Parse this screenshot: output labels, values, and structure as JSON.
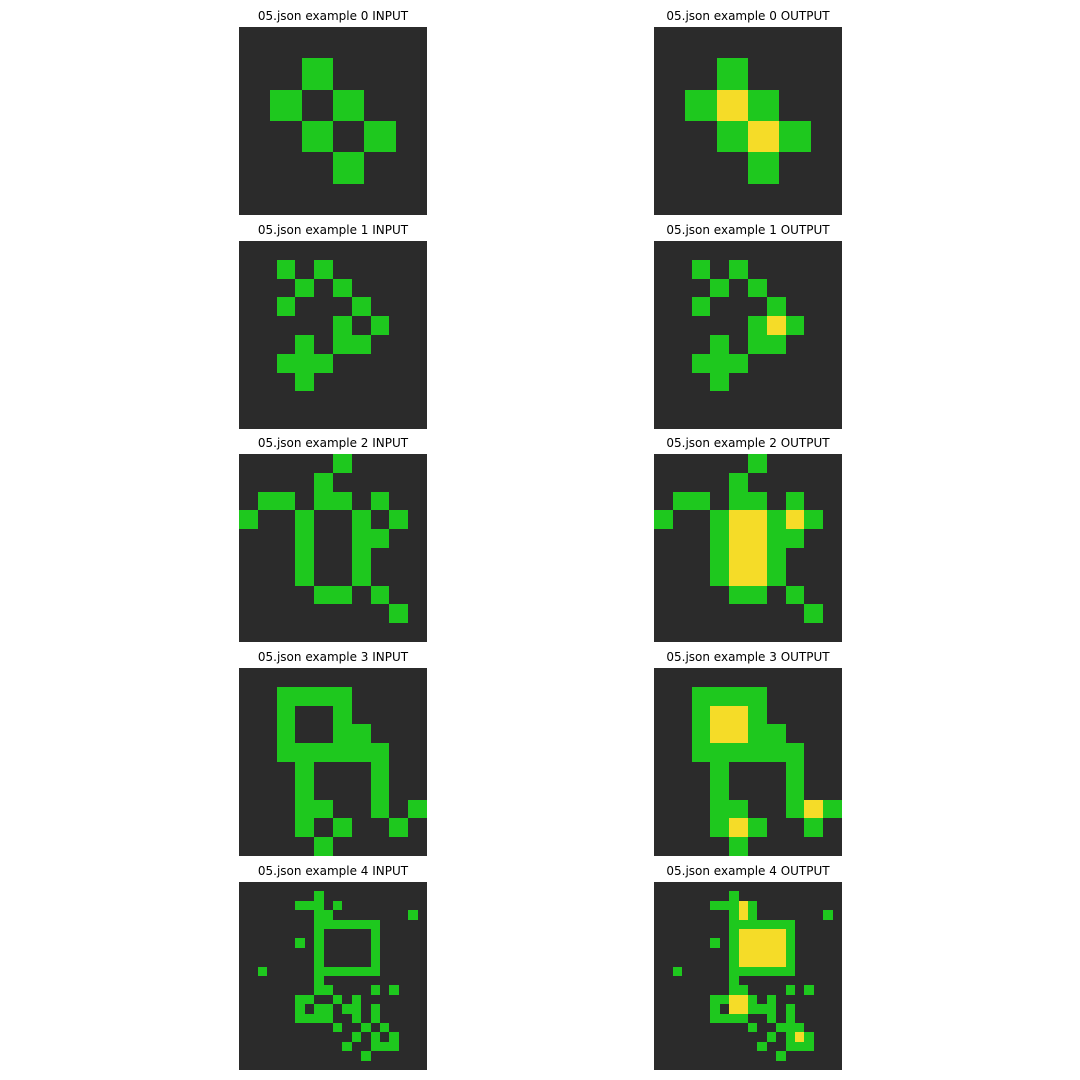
{
  "colors": {
    "0": "#2b2b2b",
    "3": "#1ec81e",
    "4": "#f5dc28"
  },
  "examples": [
    {
      "input": {
        "title": "05.json example 0 INPUT",
        "grid": [
          "000000",
          "003000",
          "030300",
          "003030",
          "000300",
          "000000"
        ]
      },
      "output": {
        "title": "05.json example 0 OUTPUT",
        "grid": [
          "000000",
          "003000",
          "034300",
          "003430",
          "000300",
          "000000"
        ]
      }
    },
    {
      "input": {
        "title": "05.json example 1 INPUT",
        "grid": [
          "0000000000",
          "0030300000",
          "0003030000",
          "0030003000",
          "0000030300",
          "0003033000",
          "0033300000",
          "0003000000",
          "0000000000",
          "0000000000"
        ]
      },
      "output": {
        "title": "05.json example 1 OUTPUT",
        "grid": [
          "0000000000",
          "0030300000",
          "0003030000",
          "0030003000",
          "0000034300",
          "0003033000",
          "0033300000",
          "0003000000",
          "0000000000",
          "0000000000"
        ]
      }
    },
    {
      "input": {
        "title": "05.json example 2 INPUT",
        "grid": [
          "0000030000",
          "0000300000",
          "0330330300",
          "3003003030",
          "0003003300",
          "0003003000",
          "0003003000",
          "0000330300",
          "0000000030",
          "0000000000"
        ]
      },
      "output": {
        "title": "05.json example 2 OUTPUT",
        "grid": [
          "0000030000",
          "0000300000",
          "0330330300",
          "3003443430",
          "0003443300",
          "0003443000",
          "0003443000",
          "0000330300",
          "0000000030",
          "0000000000"
        ]
      }
    },
    {
      "input": {
        "title": "05.json example 3 INPUT",
        "grid": [
          "0000000000",
          "0033330000",
          "0030030000",
          "0030033000",
          "0033333300",
          "0003000300",
          "0003000300",
          "0003300303",
          "0003030030",
          "0000300000"
        ]
      },
      "output": {
        "title": "05.json example 3 OUTPUT",
        "grid": [
          "0000000000",
          "0033330000",
          "0034430000",
          "0034433000",
          "0033333300",
          "0003000300",
          "0003000300",
          "0003300343",
          "0003430030",
          "0000300000"
        ]
      }
    },
    {
      "input": {
        "title": "05.json example 4 INPUT",
        "grid": [
          "00000000000000000000",
          "00000000300000000000",
          "00000033303000000000",
          "00000000330000000030",
          "00000000333333300000",
          "00000000300000300000",
          "00000030300000300000",
          "00000000300000300000",
          "00000000300000300000",
          "00300000333333300000",
          "00000000300000000000",
          "00000000330000303000",
          "00000033003030000000",
          "00000030330330300000",
          "00000033330030300000",
          "00000000003003030000",
          "00000000000030303000",
          "00000000000300333000",
          "00000000000003000000",
          "00000000000000000000"
        ]
      },
      "output": {
        "title": "05.json example 4 OUTPUT",
        "grid": [
          "00000000000000000000",
          "00000000300000000000",
          "00000033343000000000",
          "00000000343000000030",
          "00000000333333300000",
          "00000000344444300000",
          "00000030344444300000",
          "00000000344444300000",
          "00000000344444300000",
          "00300000333333300000",
          "00000000300000000000",
          "00000000330000303000",
          "00000033443030000000",
          "00000030443330300000",
          "00000033330030300000",
          "00000000003003330000",
          "00000000000030343000",
          "00000000000300333000",
          "00000000000003000000",
          "00000000000000000000"
        ]
      }
    }
  ]
}
